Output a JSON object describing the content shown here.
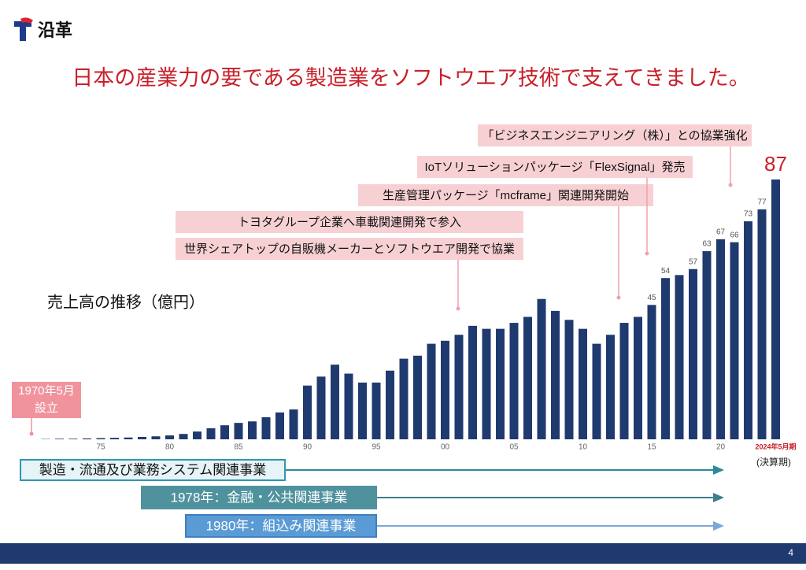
{
  "header": {
    "title": "沿革",
    "heading": "日本の産業力の要である製造業をソフトウエア技術で支えてきました。"
  },
  "chart_data": {
    "type": "bar",
    "title": "売上高の推移（億円）",
    "categories": [
      null,
      null,
      null,
      null,
      null,
      "75",
      null,
      null,
      null,
      null,
      "80",
      null,
      null,
      null,
      null,
      "85",
      null,
      null,
      null,
      null,
      "90",
      null,
      null,
      null,
      null,
      "95",
      null,
      null,
      null,
      null,
      "00",
      null,
      null,
      null,
      null,
      "05",
      null,
      null,
      null,
      null,
      "10",
      null,
      null,
      null,
      null,
      "15",
      null,
      null,
      null,
      null,
      "20",
      null,
      null,
      null,
      "2024年5月期"
    ],
    "values": [
      null,
      0.1,
      0.2,
      0.2,
      0.3,
      0.4,
      0.5,
      0.6,
      0.8,
      1.0,
      1.3,
      1.8,
      2.6,
      3.7,
      4.7,
      5.5,
      6,
      7.4,
      9,
      10,
      18,
      21,
      25,
      22,
      19,
      19,
      23,
      27,
      28,
      32,
      33,
      35,
      38,
      37,
      37,
      39,
      41,
      47,
      43,
      40,
      37,
      32,
      35,
      39,
      41,
      45,
      54,
      55,
      57,
      63,
      67,
      66,
      73,
      77,
      87
    ],
    "value_labels": [
      null,
      null,
      null,
      null,
      null,
      null,
      null,
      null,
      null,
      null,
      null,
      null,
      null,
      null,
      null,
      null,
      null,
      null,
      null,
      null,
      null,
      null,
      null,
      null,
      null,
      null,
      null,
      null,
      null,
      null,
      null,
      null,
      null,
      null,
      null,
      null,
      null,
      null,
      null,
      null,
      null,
      null,
      null,
      null,
      null,
      "45",
      "54",
      null,
      "57",
      "63",
      "67",
      "66",
      "73",
      "77",
      "87"
    ],
    "color": "#1f3a6e",
    "ylim": [
      0,
      87
    ],
    "x_note": "(決算期)",
    "founding": "1970年5月\n設立",
    "annotations": [
      "「ビジネスエンジニアリング（株）」との協業強化",
      "IoTソリューションパッケージ「FlexSignal」発売",
      "生産管理パッケージ「mcframe」関連開発開始",
      "トヨタグループ企業へ車載関連開発で参入",
      "世界シェアトップの自販機メーカーとソフトウエア開発で協業"
    ]
  },
  "businesses": [
    "製造・流通及び業務システム関連事業",
    "1978年：金融・公共関連事業",
    "1980年：組込み関連事業"
  ],
  "page_number": "4"
}
